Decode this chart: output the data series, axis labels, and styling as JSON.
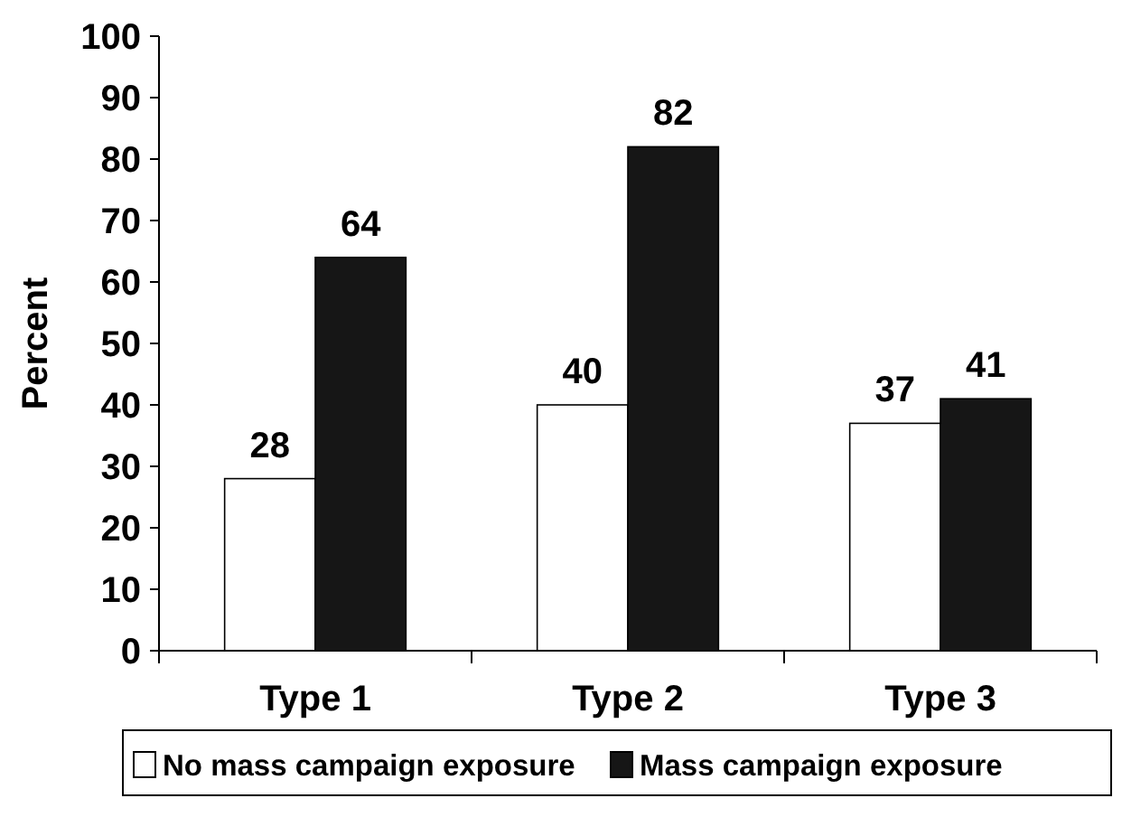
{
  "chart_data": {
    "type": "bar",
    "ylabel": "Percent",
    "categories": [
      "Type 1",
      "Type 2",
      "Type 3"
    ],
    "series": [
      {
        "name": "No mass campaign exposure",
        "color": "#ffffff",
        "values": [
          28,
          40,
          37
        ]
      },
      {
        "name": "Mass campaign exposure",
        "color": "#161616",
        "values": [
          64,
          82,
          41
        ]
      }
    ],
    "ylim": [
      0,
      100
    ],
    "yticks": [
      0,
      10,
      20,
      30,
      40,
      50,
      60,
      70,
      80,
      90,
      100
    ],
    "data_labels": true,
    "legend": "bottom",
    "grid": false
  }
}
